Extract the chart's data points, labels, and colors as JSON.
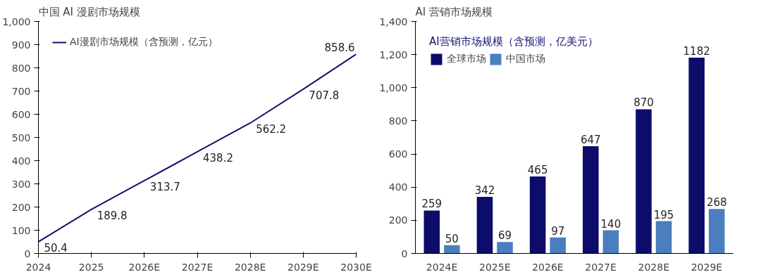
{
  "chart_data": [
    {
      "type": "line",
      "title": "中国 AI 漫剧市场规模",
      "categories": [
        "2024",
        "2025",
        "2026E",
        "2027E",
        "2028E",
        "2029E",
        "2030E"
      ],
      "series": [
        {
          "name": "AI漫剧市场规模（含预测，亿元）",
          "color": "#101070",
          "values": [
            50.4,
            189.8,
            313.7,
            438.2,
            562.2,
            707.8,
            858.6
          ]
        }
      ],
      "ylim": [
        0,
        1000
      ],
      "yticks": [
        0,
        100,
        200,
        300,
        400,
        500,
        600,
        700,
        800,
        900,
        {
          "value": 1000,
          "label": "1,000"
        }
      ],
      "data_labels": true,
      "legend": "top left",
      "grid": false,
      "marker": "none"
    },
    {
      "type": "bar",
      "title": "AI 营销市场规模",
      "legend_title": "AI营销市场规模（含预测，亿美元）",
      "categories": [
        "2024E",
        "2025E",
        "2026E",
        "2027E",
        "2028E",
        "2029E"
      ],
      "series": [
        {
          "name": "全球市场",
          "color": "#0c0c6a",
          "values": [
            259,
            342,
            465,
            647,
            870,
            1182
          ]
        },
        {
          "name": "中国市场",
          "color": "#4a7ebf",
          "values": [
            50,
            69,
            97,
            140,
            195,
            268
          ]
        }
      ],
      "ylim": [
        0,
        1400
      ],
      "yticks": [
        0,
        200,
        400,
        600,
        800,
        {
          "value": 1000,
          "label": "1,000"
        },
        {
          "value": 1200,
          "label": "1,200"
        },
        {
          "value": 1400,
          "label": "1,400"
        }
      ],
      "data_labels": true,
      "legend": "top left",
      "grid": false
    }
  ]
}
